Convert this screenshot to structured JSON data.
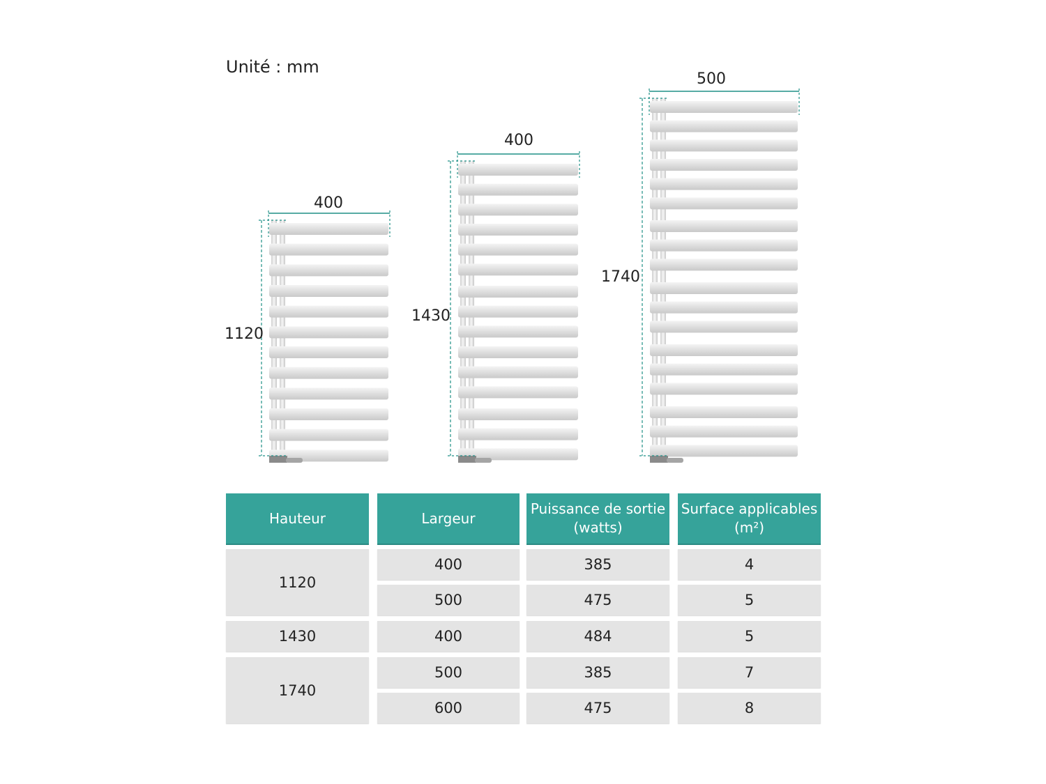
{
  "unit_label": "Unité : mm",
  "radiators": [
    {
      "width_label": "400",
      "height_label": "1120",
      "bar_groups": 4
    },
    {
      "width_label": "400",
      "height_label": "1430",
      "bar_groups": 5
    },
    {
      "width_label": "500",
      "height_label": "1740",
      "bar_groups": 6
    }
  ],
  "colors": {
    "accent": "#36a39a",
    "cell": "#e4e4e4",
    "dimension_line": "#1f8f86"
  },
  "table": {
    "headers": [
      "Hauteur",
      "Largeur",
      "Puissance de sortie (watts)",
      "Surface applicables (m²)"
    ],
    "header_lines": [
      [
        "Hauteur"
      ],
      [
        "Largeur"
      ],
      [
        "Puissance de sortie",
        "(watts)"
      ],
      [
        "Surface applicables",
        "(m²)"
      ]
    ],
    "hauteur": [
      "1120",
      "1430",
      "1740"
    ],
    "rows": [
      {
        "largeur": "400",
        "puissance": "385",
        "surface": "4"
      },
      {
        "largeur": "500",
        "puissance": "475",
        "surface": "5"
      },
      {
        "largeur": "400",
        "puissance": "484",
        "surface": "5"
      },
      {
        "largeur": "500",
        "puissance": "385",
        "surface": "7"
      },
      {
        "largeur": "600",
        "puissance": "475",
        "surface": "8"
      }
    ]
  }
}
